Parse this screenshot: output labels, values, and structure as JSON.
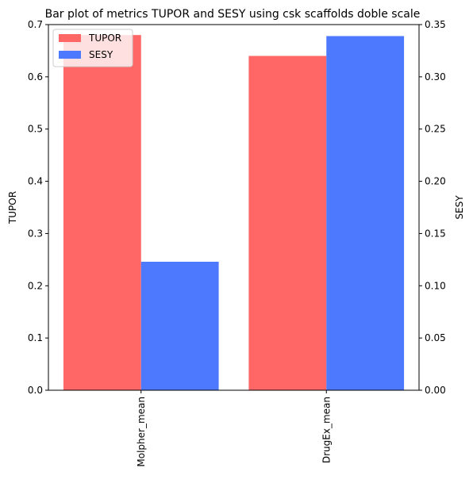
{
  "chart_data": {
    "type": "bar",
    "title": "Bar plot of metrics TUPOR and SESY using csk scaffolds doble scale",
    "categories": [
      "Molpher_mean",
      "DrugEx_mean"
    ],
    "series": [
      {
        "name": "TUPOR",
        "axis": "left",
        "values": [
          0.68,
          0.64
        ],
        "color": "#ff6666"
      },
      {
        "name": "SESY",
        "axis": "right",
        "values": [
          0.123,
          0.339
        ],
        "color": "#4d79ff"
      }
    ],
    "ylabel": "TUPOR",
    "ylabel_right": "SESY",
    "ylim": [
      0,
      0.7
    ],
    "ylim_right": [
      0,
      0.35
    ],
    "yticks": [
      "0.0",
      "0.1",
      "0.2",
      "0.3",
      "0.4",
      "0.5",
      "0.6",
      "0.7"
    ],
    "yticks_right": [
      "0.00",
      "0.05",
      "0.10",
      "0.15",
      "0.20",
      "0.25",
      "0.30",
      "0.35"
    ],
    "grid": false,
    "legend_position": "top-left",
    "xtick_rotation": "vertical"
  }
}
